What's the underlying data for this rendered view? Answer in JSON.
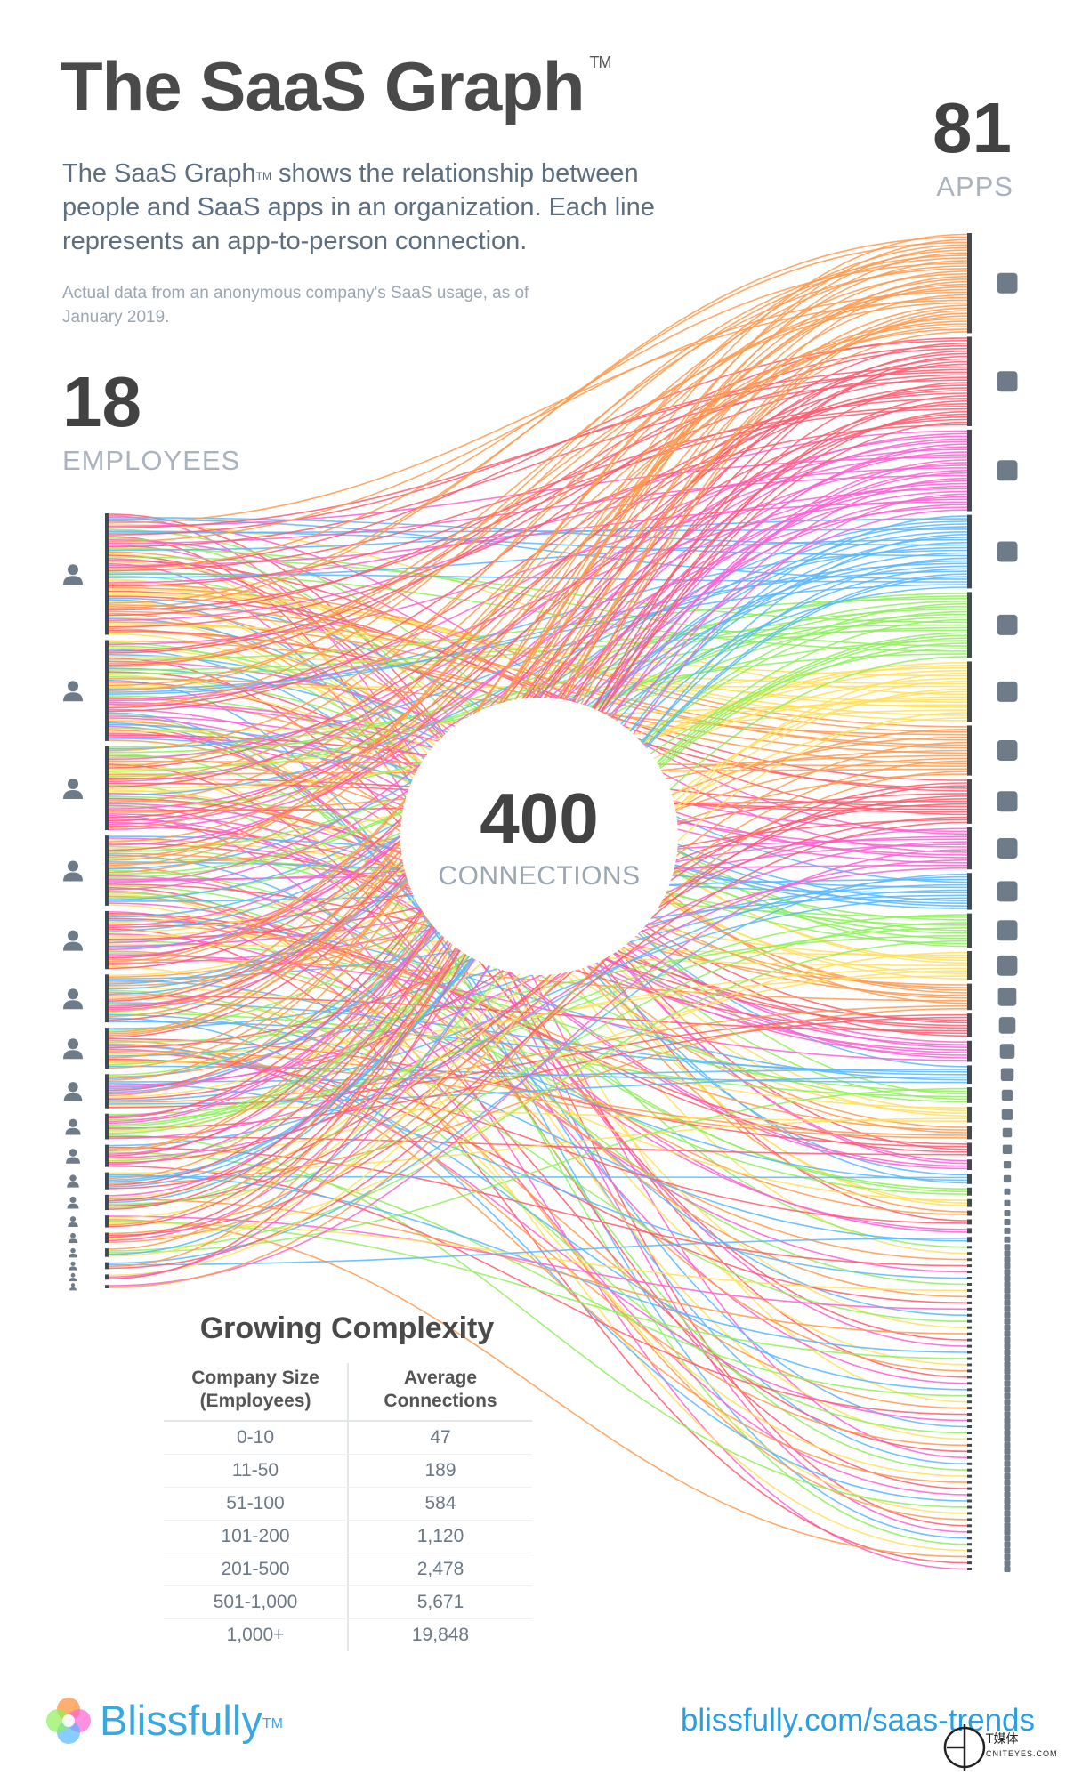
{
  "header": {
    "title": "The SaaS Graph",
    "title_tm": "TM",
    "description_lead": "The SaaS Graph",
    "description_tm": "TM",
    "description_rest": " shows the relationship between people and SaaS apps in an organization. Each line represents an app-to-person connection.",
    "source_note": "Actual data from an anonymous company's SaaS usage, as of January 2019."
  },
  "employees": {
    "count": "18",
    "label": "EMPLOYEES"
  },
  "apps": {
    "count": "81",
    "label": "APPS"
  },
  "center": {
    "count": "400",
    "label": "CONNECTIONS"
  },
  "chart_data": {
    "type": "table",
    "title": "Growing Complexity",
    "columns": [
      "Company Size (Employees)",
      "Average Connections"
    ],
    "rows": [
      [
        "0-10",
        "47"
      ],
      [
        "11-50",
        "189"
      ],
      [
        "51-100",
        "584"
      ],
      [
        "101-200",
        "1,120"
      ],
      [
        "201-500",
        "2,478"
      ],
      [
        "501-1,000",
        "5,671"
      ],
      [
        "1,000+",
        "19,848"
      ]
    ]
  },
  "graph": {
    "line_colors": [
      "#ff9a4d",
      "#ff5a6e",
      "#ff5fd2",
      "#57b7ff",
      "#8ef05a",
      "#ffe05a"
    ],
    "node_color": "#6e7b88",
    "bar_color": "#3f4a55"
  },
  "footer": {
    "brand": "Blissfully",
    "brand_tm": "TM",
    "link": "blissfully.com/saas-trends",
    "watermark_cn": "T媒体",
    "watermark_en": "CNITEYES.COM"
  }
}
